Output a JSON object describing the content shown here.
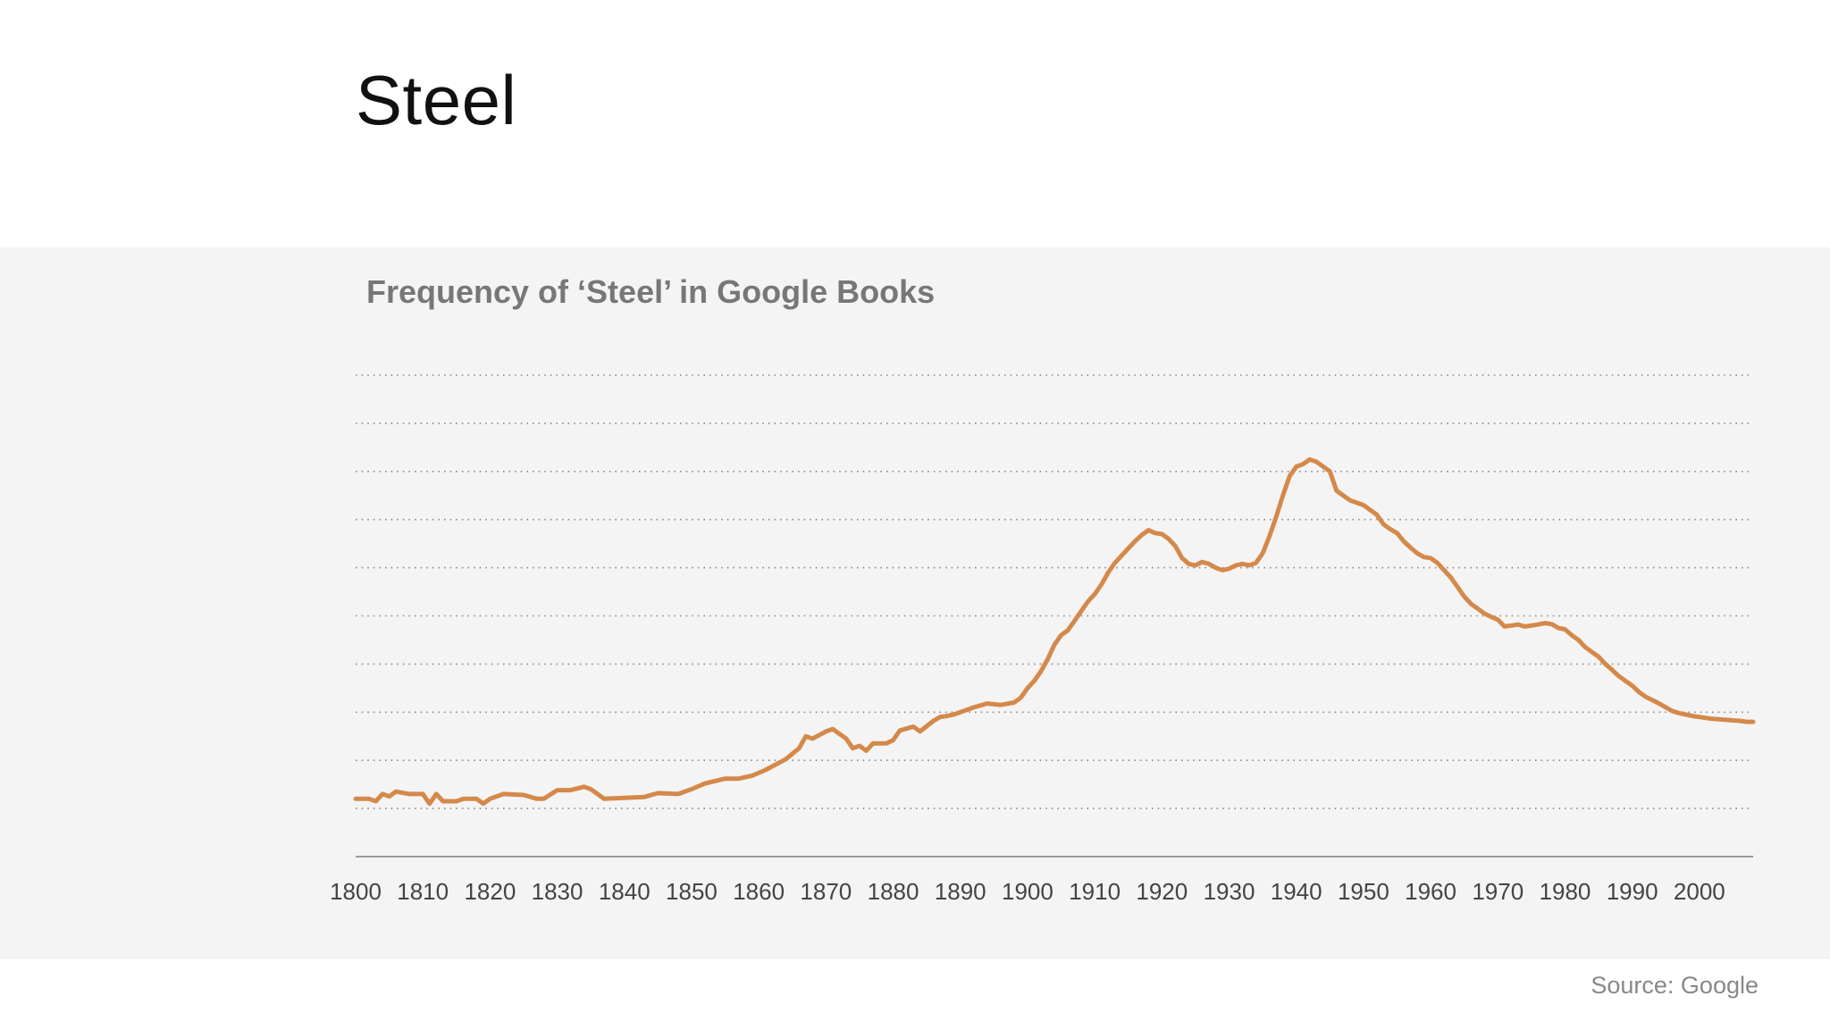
{
  "slide": {
    "title": "Steel",
    "source": "Source: Google"
  },
  "colors": {
    "line": "#d4894a",
    "grid": "#8a8a8a",
    "axis": "#9a9a9a",
    "tick_label": "#444444",
    "panel_bg": "#f5f4f4"
  },
  "chart_data": {
    "type": "line",
    "title": "Frequency of ‘Steel’ in Google Books",
    "xlabel": "",
    "ylabel": "",
    "xlim": [
      1800,
      2008
    ],
    "ylim": [
      0,
      10
    ],
    "grid": "horizontal-dotted",
    "x_ticks": [
      1800,
      1810,
      1820,
      1830,
      1840,
      1850,
      1860,
      1870,
      1880,
      1890,
      1900,
      1910,
      1920,
      1930,
      1940,
      1950,
      1960,
      1970,
      1980,
      1990,
      2000
    ],
    "series": [
      {
        "name": "",
        "points": [
          [
            1800,
            1.2
          ],
          [
            1802,
            1.2
          ],
          [
            1803,
            1.15
          ],
          [
            1804,
            1.3
          ],
          [
            1805,
            1.25
          ],
          [
            1806,
            1.35
          ],
          [
            1808,
            1.3
          ],
          [
            1810,
            1.3
          ],
          [
            1811,
            1.1
          ],
          [
            1812,
            1.3
          ],
          [
            1813,
            1.15
          ],
          [
            1815,
            1.15
          ],
          [
            1816,
            1.2
          ],
          [
            1818,
            1.2
          ],
          [
            1819,
            1.1
          ],
          [
            1820,
            1.2
          ],
          [
            1822,
            1.3
          ],
          [
            1825,
            1.28
          ],
          [
            1827,
            1.2
          ],
          [
            1828,
            1.2
          ],
          [
            1830,
            1.38
          ],
          [
            1832,
            1.38
          ],
          [
            1834,
            1.45
          ],
          [
            1835,
            1.4
          ],
          [
            1837,
            1.2
          ],
          [
            1840,
            1.22
          ],
          [
            1843,
            1.24
          ],
          [
            1845,
            1.32
          ],
          [
            1848,
            1.3
          ],
          [
            1850,
            1.4
          ],
          [
            1852,
            1.52
          ],
          [
            1855,
            1.62
          ],
          [
            1857,
            1.62
          ],
          [
            1859,
            1.68
          ],
          [
            1861,
            1.8
          ],
          [
            1864,
            2.02
          ],
          [
            1866,
            2.25
          ],
          [
            1867,
            2.5
          ],
          [
            1868,
            2.45
          ],
          [
            1870,
            2.6
          ],
          [
            1871,
            2.65
          ],
          [
            1873,
            2.45
          ],
          [
            1874,
            2.25
          ],
          [
            1875,
            2.3
          ],
          [
            1876,
            2.2
          ],
          [
            1877,
            2.35
          ],
          [
            1879,
            2.35
          ],
          [
            1880,
            2.42
          ],
          [
            1881,
            2.62
          ],
          [
            1883,
            2.7
          ],
          [
            1884,
            2.6
          ],
          [
            1886,
            2.82
          ],
          [
            1887,
            2.9
          ],
          [
            1888,
            2.92
          ],
          [
            1889,
            2.95
          ],
          [
            1891,
            3.05
          ],
          [
            1892,
            3.1
          ],
          [
            1894,
            3.18
          ],
          [
            1896,
            3.15
          ],
          [
            1898,
            3.2
          ],
          [
            1899,
            3.3
          ],
          [
            1900,
            3.5
          ],
          [
            1901,
            3.65
          ],
          [
            1902,
            3.85
          ],
          [
            1903,
            4.1
          ],
          [
            1904,
            4.4
          ],
          [
            1905,
            4.6
          ],
          [
            1906,
            4.7
          ],
          [
            1907,
            4.9
          ],
          [
            1908,
            5.1
          ],
          [
            1909,
            5.3
          ],
          [
            1910,
            5.45
          ],
          [
            1911,
            5.65
          ],
          [
            1912,
            5.9
          ],
          [
            1913,
            6.1
          ],
          [
            1914,
            6.25
          ],
          [
            1915,
            6.4
          ],
          [
            1916,
            6.55
          ],
          [
            1917,
            6.68
          ],
          [
            1918,
            6.78
          ],
          [
            1919,
            6.72
          ],
          [
            1920,
            6.7
          ],
          [
            1921,
            6.6
          ],
          [
            1922,
            6.45
          ],
          [
            1923,
            6.2
          ],
          [
            1924,
            6.08
          ],
          [
            1925,
            6.05
          ],
          [
            1926,
            6.12
          ],
          [
            1927,
            6.08
          ],
          [
            1928,
            6.0
          ],
          [
            1929,
            5.95
          ],
          [
            1930,
            5.98
          ],
          [
            1931,
            6.05
          ],
          [
            1932,
            6.08
          ],
          [
            1933,
            6.05
          ],
          [
            1934,
            6.1
          ],
          [
            1935,
            6.3
          ],
          [
            1936,
            6.65
          ],
          [
            1937,
            7.05
          ],
          [
            1938,
            7.5
          ],
          [
            1939,
            7.9
          ],
          [
            1940,
            8.1
          ],
          [
            1941,
            8.15
          ],
          [
            1942,
            8.25
          ],
          [
            1943,
            8.2
          ],
          [
            1944,
            8.1
          ],
          [
            1945,
            8.0
          ],
          [
            1946,
            7.6
          ],
          [
            1947,
            7.5
          ],
          [
            1948,
            7.4
          ],
          [
            1949,
            7.35
          ],
          [
            1950,
            7.3
          ],
          [
            1951,
            7.2
          ],
          [
            1952,
            7.1
          ],
          [
            1953,
            6.9
          ],
          [
            1954,
            6.8
          ],
          [
            1955,
            6.72
          ],
          [
            1956,
            6.55
          ],
          [
            1957,
            6.42
          ],
          [
            1958,
            6.3
          ],
          [
            1959,
            6.22
          ],
          [
            1960,
            6.2
          ],
          [
            1961,
            6.1
          ],
          [
            1962,
            5.95
          ],
          [
            1963,
            5.8
          ],
          [
            1964,
            5.6
          ],
          [
            1965,
            5.4
          ],
          [
            1966,
            5.25
          ],
          [
            1967,
            5.15
          ],
          [
            1968,
            5.05
          ],
          [
            1969,
            4.98
          ],
          [
            1970,
            4.92
          ],
          [
            1971,
            4.78
          ],
          [
            1972,
            4.8
          ],
          [
            1973,
            4.82
          ],
          [
            1974,
            4.78
          ],
          [
            1975,
            4.8
          ],
          [
            1976,
            4.82
          ],
          [
            1977,
            4.85
          ],
          [
            1978,
            4.83
          ],
          [
            1979,
            4.75
          ],
          [
            1980,
            4.72
          ],
          [
            1981,
            4.6
          ],
          [
            1982,
            4.5
          ],
          [
            1983,
            4.35
          ],
          [
            1984,
            4.25
          ],
          [
            1985,
            4.15
          ],
          [
            1986,
            4.0
          ],
          [
            1987,
            3.88
          ],
          [
            1988,
            3.75
          ],
          [
            1989,
            3.65
          ],
          [
            1990,
            3.55
          ],
          [
            1991,
            3.42
          ],
          [
            1992,
            3.32
          ],
          [
            1993,
            3.25
          ],
          [
            1994,
            3.18
          ],
          [
            1995,
            3.1
          ],
          [
            1996,
            3.02
          ],
          [
            1997,
            2.98
          ],
          [
            1998,
            2.95
          ],
          [
            1999,
            2.92
          ],
          [
            2000,
            2.9
          ],
          [
            2001,
            2.88
          ],
          [
            2002,
            2.86
          ],
          [
            2003,
            2.85
          ],
          [
            2004,
            2.84
          ],
          [
            2005,
            2.83
          ],
          [
            2006,
            2.82
          ],
          [
            2007,
            2.8
          ],
          [
            2008,
            2.8
          ]
        ]
      }
    ]
  }
}
